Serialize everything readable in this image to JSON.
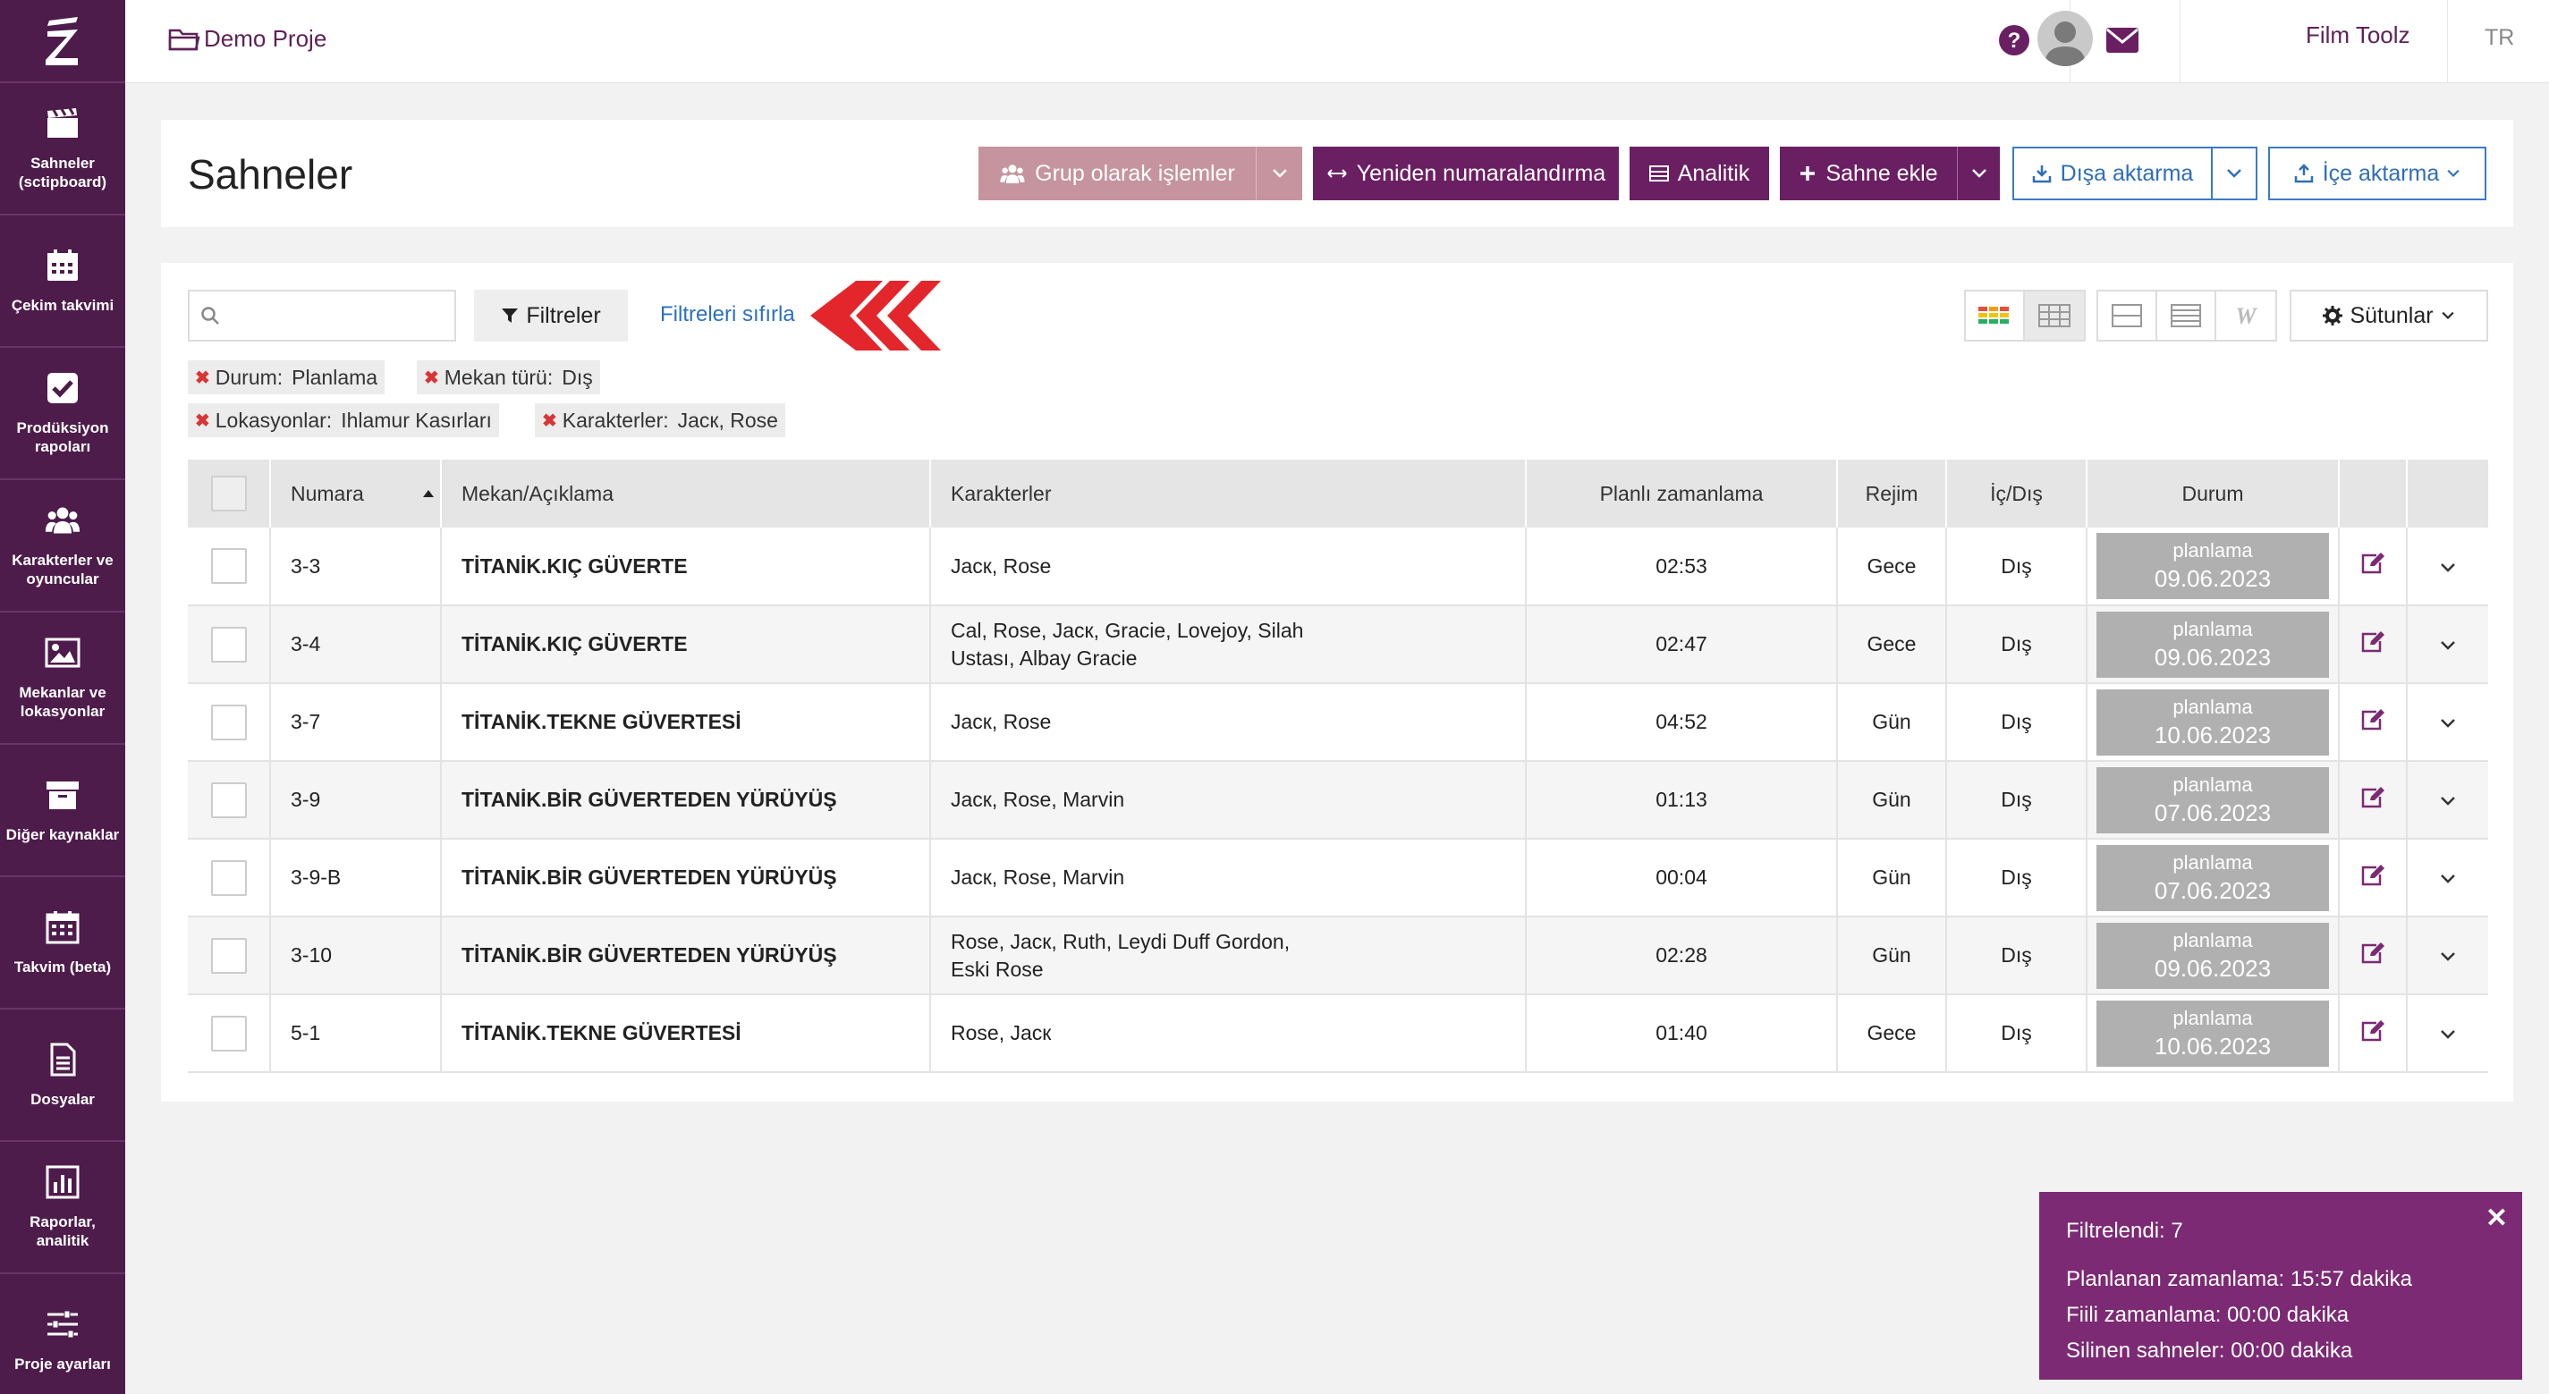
{
  "nav": {
    "items": [
      {
        "label": "Sahneler (sctipboard)",
        "icon": "clapperboard-icon"
      },
      {
        "label": "Çekim takvimi",
        "icon": "calendar-icon"
      },
      {
        "label": "Prodüksiyon rapoları",
        "icon": "checkbox-icon"
      },
      {
        "label": "Karakterler ve oyuncular",
        "icon": "users-icon"
      },
      {
        "label": "Mekanlar ve lokasyonlar",
        "icon": "image-icon"
      },
      {
        "label": "Diğer kaynaklar",
        "icon": "archive-icon"
      },
      {
        "label": "Takvim (beta)",
        "icon": "calendar-grid-icon"
      },
      {
        "label": "Dosyalar",
        "icon": "file-icon"
      },
      {
        "label": "Raporlar, analitik",
        "icon": "bar-chart-icon"
      },
      {
        "label": "Proje ayarları",
        "icon": "sliders-icon"
      }
    ]
  },
  "topbar": {
    "project": "Demo Proje",
    "user": "Film Toolz",
    "lang": "TR"
  },
  "header": {
    "title": "Sahneler",
    "bulk": "Grup olarak işlemler",
    "renumber": "Yeniden numaralandırma",
    "analytics": "Analitik",
    "add_scene": "Sahne ekle",
    "export": "Dışa aktarma",
    "import": "İçe aktarma"
  },
  "toolbar": {
    "search_placeholder": "",
    "filters": "Filtreler",
    "reset": "Filtreleri sıfırla",
    "columns": "Sütunlar"
  },
  "chips": [
    {
      "key": "Durum:",
      "value": "Planlama"
    },
    {
      "key": "Mekan türü:",
      "value": "Dış"
    },
    {
      "key": "Lokasyonlar:",
      "value": "Ihlamur Kasırları"
    },
    {
      "key": "Karakterler:",
      "value": "Jacк, Rose"
    }
  ],
  "table": {
    "headers": {
      "num": "Numara",
      "loc": "Mekan/Açıklama",
      "chars": "Karakterler",
      "plan": "Planlı zamanlama",
      "rejim": "Rejim",
      "ic": "İç/Dış",
      "durum": "Durum"
    },
    "rows": [
      {
        "num": "3-3",
        "loc": "TİTANİK.KIÇ GÜVERTE",
        "chars1": "Jacк, Rose",
        "chars2": "",
        "plan": "02:53",
        "rejim": "Gece",
        "ic": "Dış",
        "status": "planlama",
        "date": "09.06.2023"
      },
      {
        "num": "3-4",
        "loc": "TİTANİK.KIÇ GÜVERTE",
        "chars1": "Cal, Rose, Jacк, Gracie, Lovejoy, Silah",
        "chars2": "Ustası, Albay Gracie",
        "plan": "02:47",
        "rejim": "Gece",
        "ic": "Dış",
        "status": "planlama",
        "date": "09.06.2023"
      },
      {
        "num": "3-7",
        "loc": "TİTANİK.TEKNE GÜVERTESİ",
        "chars1": "Jacк, Rose",
        "chars2": "",
        "plan": "04:52",
        "rejim": "Gün",
        "ic": "Dış",
        "status": "planlama",
        "date": "10.06.2023"
      },
      {
        "num": "3-9",
        "loc": "TİTANİK.BİR GÜVERTEDEN YÜRÜYÜŞ",
        "chars1": "Jacк, Rose, Marvin",
        "chars2": "",
        "plan": "01:13",
        "rejim": "Gün",
        "ic": "Dış",
        "status": "planlama",
        "date": "07.06.2023"
      },
      {
        "num": "3-9-B",
        "loc": "TİTANİK.BİR GÜVERTEDEN YÜRÜYÜŞ",
        "chars1": "Jacк, Rose, Marvin",
        "chars2": "",
        "plan": "00:04",
        "rejim": "Gün",
        "ic": "Dış",
        "status": "planlama",
        "date": "07.06.2023"
      },
      {
        "num": "3-10",
        "loc": "TİTANİK.BİR GÜVERTEDEN YÜRÜYÜŞ",
        "chars1": "Rose, Jacк, Ruth, Leydi Duff Gordon,",
        "chars2": "Eski Rose",
        "plan": "02:28",
        "rejim": "Gün",
        "ic": "Dış",
        "status": "planlama",
        "date": "09.06.2023"
      },
      {
        "num": "5-1",
        "loc": "TİTANİK.TEKNE GÜVERTESİ",
        "chars1": "Rose, Jacк",
        "chars2": "",
        "plan": "01:40",
        "rejim": "Gece",
        "ic": "Dış",
        "status": "planlama",
        "date": "10.06.2023"
      }
    ]
  },
  "toast": {
    "filtered": "Filtrelendi: 7",
    "planned": "Planlanan zamanlama: 15:57 dakika",
    "actual": "Fiili zamanlama: 00:00 dakika",
    "deleted": "Silinen sahneler: 00:00 dakika"
  },
  "colors": {
    "sidebar": "#4d1c4b",
    "primary": "#6b1f63",
    "muted_button": "#c5949e",
    "link": "#2c6fc0",
    "status_gray": "#b0b0b0",
    "toast": "#7b2a73",
    "arrow_red": "#e3262b"
  }
}
